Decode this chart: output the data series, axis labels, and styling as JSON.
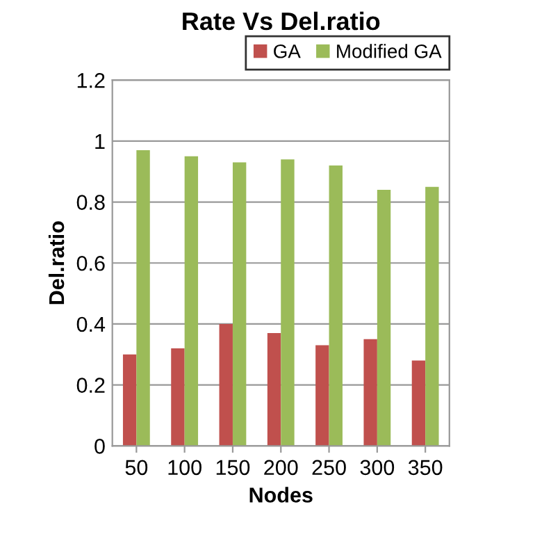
{
  "chart_data": {
    "type": "bar",
    "title": "Rate Vs Del.ratio",
    "xlabel": "Nodes",
    "ylabel": "Del.ratio",
    "categories": [
      "50",
      "100",
      "150",
      "200",
      "250",
      "300",
      "350"
    ],
    "series": [
      {
        "name": "GA",
        "color": "#c0504d",
        "values": [
          0.3,
          0.32,
          0.4,
          0.37,
          0.33,
          0.35,
          0.28
        ]
      },
      {
        "name": "Modified GA",
        "color": "#9bbb59",
        "values": [
          0.97,
          0.95,
          0.93,
          0.94,
          0.92,
          0.84,
          0.85
        ]
      }
    ],
    "ylim": [
      0,
      1.2
    ],
    "yticks": [
      0,
      {
        "value": 0.2,
        "label": "0.2"
      },
      {
        "value": 0.4,
        "label": "0.4"
      },
      {
        "value": 0.6,
        "label": "0.6"
      },
      {
        "value": 0.8,
        "label": "0.8"
      },
      1,
      {
        "value": 1.2,
        "label": "1.2"
      }
    ],
    "grid": "y",
    "legend": "top right"
  }
}
